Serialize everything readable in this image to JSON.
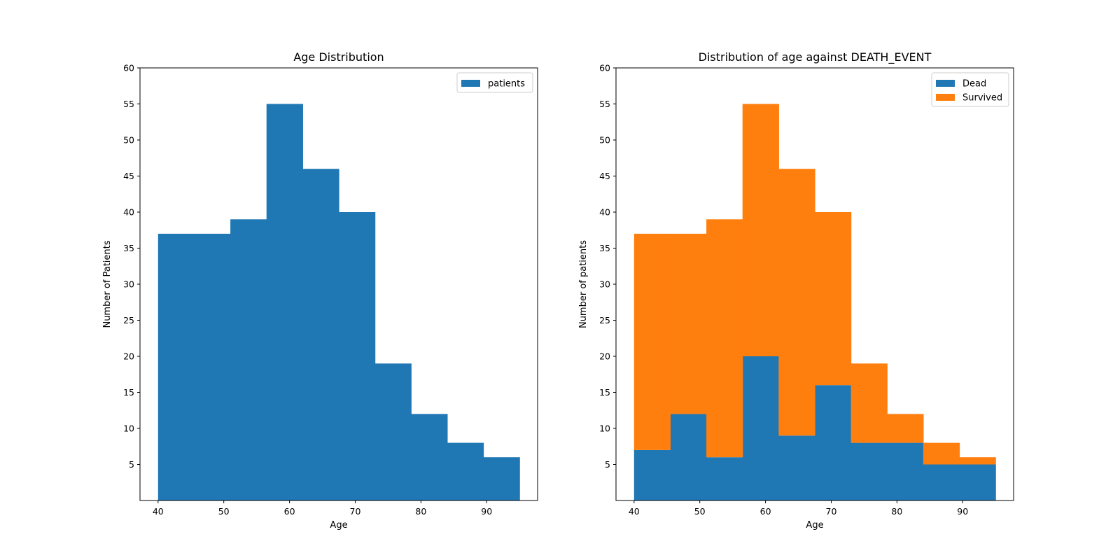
{
  "chart_data": [
    {
      "type": "bar",
      "title": "Age Distribution",
      "xlabel": "Age",
      "ylabel": "Number of Patients",
      "xlim": [
        37.25,
        97.75
      ],
      "ylim": [
        0,
        60
      ],
      "xticks": [
        40,
        50,
        60,
        70,
        80,
        90
      ],
      "yticks": [
        5,
        10,
        15,
        20,
        25,
        30,
        35,
        40,
        45,
        50,
        55,
        60
      ],
      "bin_edges": [
        40,
        45.5,
        51,
        56.5,
        62,
        67.5,
        73,
        78.5,
        84,
        89.5,
        95
      ],
      "stacked": false,
      "grid": false,
      "legend_position": "top-right",
      "series": [
        {
          "name": "patients",
          "color": "#1f77b4",
          "values": [
            37,
            37,
            39,
            55,
            46,
            40,
            19,
            12,
            8,
            6
          ]
        }
      ]
    },
    {
      "type": "bar",
      "title": "Distribution of age against DEATH_EVENT",
      "xlabel": "Age",
      "ylabel": "Number of patients",
      "xlim": [
        37.25,
        97.75
      ],
      "ylim": [
        0,
        60
      ],
      "xticks": [
        40,
        50,
        60,
        70,
        80,
        90
      ],
      "yticks": [
        5,
        10,
        15,
        20,
        25,
        30,
        35,
        40,
        45,
        50,
        55,
        60
      ],
      "bin_edges": [
        40,
        45.5,
        51,
        56.5,
        62,
        67.5,
        73,
        78.5,
        84,
        89.5,
        95
      ],
      "stacked": true,
      "grid": false,
      "legend_position": "top-right",
      "series": [
        {
          "name": "Dead",
          "color": "#1f77b4",
          "values": [
            7,
            12,
            6,
            20,
            9,
            16,
            8,
            8,
            5,
            5
          ]
        },
        {
          "name": "Survived",
          "color": "#ff7f0e",
          "values": [
            30,
            25,
            33,
            35,
            37,
            24,
            11,
            4,
            3,
            1
          ]
        }
      ]
    }
  ]
}
